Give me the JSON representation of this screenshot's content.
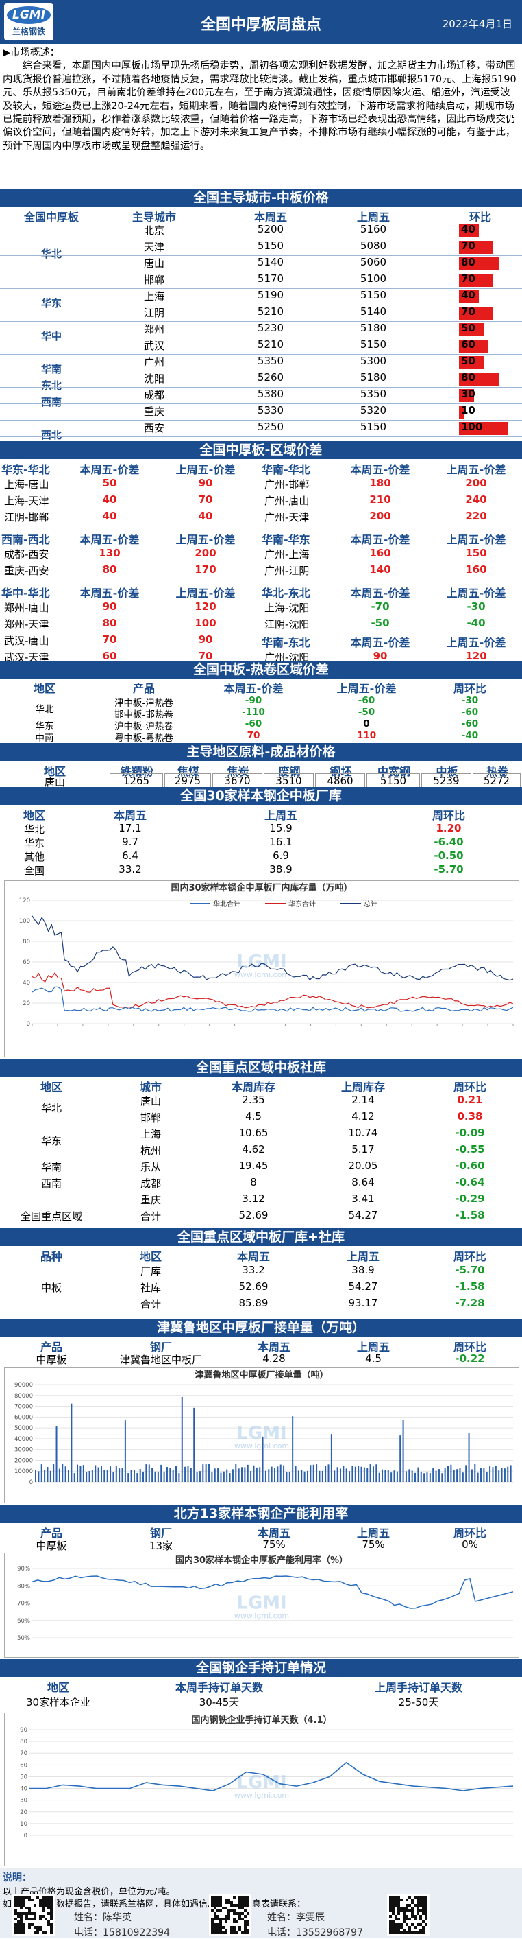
{
  "header": {
    "logo_top": "LGMI",
    "logo_bottom": "兰格钢铁",
    "title": "全国中厚板周盘点",
    "date": "2022年4月1日"
  },
  "summary": {
    "label": "市场概述：",
    "text": "综合来看，本周国内中厚板市场呈现先扬后稳走势，周初各项宏观利好数据发酵，加之期货主力市场迁移，带动国内现货报价普遍拉涨，不过随着各地疫情反复，需求释放比较清淡。截止发稿，重点城市邯郸报5170元、上海报5190元、乐从报5350元，目前南北价差维持在200元左右，至于南方资源流通性，因疫情原因除火运、船运外，汽运受波及较大，短途运费已上涨20-24元左右，短期来看，随着国内疫情得到有效控制，下游市场需求将陆续启动，期现市场已提前释放着强预期，秒作着涨系数比较浓重，但随着价格一路走高，下游市场已经表现出恐高情绪，因此市场成交仍偏议价空间，但随着国内疫情好转，加之上下游对未来复工复产节奏，不排除市场有继续小幅探涨的可能，有鉴于此，预计下周国内中厚板市场或呈现盘整趋强运行。"
  },
  "city_price": {
    "title": "全国主导城市-中板价格",
    "headers": [
      "全国中厚板",
      "主导城市",
      "本周五",
      "上周五",
      "环比"
    ],
    "rows": [
      {
        "region": "",
        "city": "北京",
        "cur": "5200",
        "prev": "5160",
        "chg": 40
      },
      {
        "region": "华北",
        "city": "天津",
        "cur": "5150",
        "prev": "5080",
        "chg": 70
      },
      {
        "region": "",
        "city": "唐山",
        "cur": "5140",
        "prev": "5060",
        "chg": 80
      },
      {
        "region": "",
        "city": "邯郸",
        "cur": "5170",
        "prev": "5100",
        "chg": 70
      },
      {
        "region": "华东",
        "city": "上海",
        "cur": "5190",
        "prev": "5150",
        "chg": 40
      },
      {
        "region": "",
        "city": "江阴",
        "cur": "5210",
        "prev": "5140",
        "chg": 70
      },
      {
        "region": "华中",
        "city": "郑州",
        "cur": "5230",
        "prev": "5180",
        "chg": 50
      },
      {
        "region": "",
        "city": "武汉",
        "cur": "5210",
        "prev": "5150",
        "chg": 60
      },
      {
        "region": "华南",
        "city": "广州",
        "cur": "5350",
        "prev": "5300",
        "chg": 50
      },
      {
        "region": "东北",
        "city": "沈阳",
        "cur": "5260",
        "prev": "5180",
        "chg": 80
      },
      {
        "region": "西南",
        "city": "成都",
        "cur": "5380",
        "prev": "5350",
        "chg": 30
      },
      {
        "region": "",
        "city": "重庆",
        "cur": "5330",
        "prev": "5320",
        "chg": 10
      },
      {
        "region": "西北",
        "city": "西安",
        "cur": "5250",
        "prev": "5150",
        "chg": 100
      }
    ]
  },
  "spread": {
    "title": "全国中厚板-区域价差",
    "blocks": [
      {
        "left_title": "华东-华北",
        "right_title": "华南-华北",
        "h_cur": "本周五-价差",
        "h_prev": "上周五-价差",
        "left": [
          [
            "上海-唐山",
            "50",
            "90"
          ],
          [
            "上海-天津",
            "40",
            "70"
          ],
          [
            "江阴-邯郸",
            "40",
            "40"
          ]
        ],
        "right": [
          [
            "广州-邯郸",
            "180",
            "200"
          ],
          [
            "广州-唐山",
            "210",
            "240"
          ],
          [
            "广州-天津",
            "200",
            "220"
          ]
        ]
      },
      {
        "left_title": "西南-西北",
        "right_title": "华南-华东",
        "h_cur": "本周五-价差",
        "h_prev": "上周五-价差",
        "left": [
          [
            "成都-西安",
            "130",
            "200"
          ],
          [
            "重庆-西安",
            "80",
            "170"
          ]
        ],
        "right": [
          [
            "广州-上海",
            "160",
            "150"
          ],
          [
            "广州-江阴",
            "140",
            "160"
          ]
        ]
      },
      {
        "left_title": "华中-华北",
        "right_title": "华北-东北",
        "h_cur": "本周五-价差",
        "h_prev": "上周五-价差",
        "left": [
          [
            "郑州-唐山",
            "90",
            "120"
          ],
          [
            "郑州-天津",
            "80",
            "100"
          ],
          [
            "武汉-唐山",
            "70",
            "90"
          ],
          [
            "武汉-天津",
            "60",
            "70"
          ]
        ],
        "right": [
          [
            "上海-沈阳",
            "-70",
            "-30"
          ],
          [
            "江阴-沈阳",
            "-50",
            "-40"
          ]
        ],
        "extra_right_title": "华南-东北",
        "extra_right": [
          "广州-沈阳",
          "90",
          "120"
        ]
      }
    ]
  },
  "hot_roll": {
    "title": "全国中板-热卷区域价差",
    "headers": [
      "地区",
      "产品",
      "本周五-价差",
      "上周五-价差",
      "周环比"
    ],
    "rows": [
      {
        "region": "",
        "product": "津中板-津热卷",
        "cur": "-90",
        "prev": "-60",
        "chg": "-30"
      },
      {
        "region": "华北",
        "product": "邯中板-邯热卷",
        "cur": "-110",
        "prev": "-50",
        "chg": "-60"
      },
      {
        "region": "华东",
        "product": "沪中板-沪热卷",
        "cur": "-60",
        "prev": "0",
        "chg": "-60"
      },
      {
        "region": "中南",
        "product": "粤中板-粤热卷",
        "cur": "70",
        "prev": "110",
        "chg": "-40"
      }
    ]
  },
  "raw": {
    "title": "主导地区原料-成品材价格",
    "headers": [
      "地区",
      "铁精粉",
      "焦煤",
      "焦炭",
      "废钢",
      "钢坯",
      "中宽钢",
      "中板",
      "热卷"
    ],
    "values": [
      "唐山",
      "1265",
      "2975",
      "3670",
      "3510",
      "4860",
      "5150",
      "5239",
      "5272"
    ]
  },
  "mill_stock": {
    "title": "全国30家样本钢企中板厂库",
    "headers": [
      "地区",
      "本周五",
      "上周五",
      "周环比"
    ],
    "rows": [
      [
        "华北",
        "17.1",
        "15.9",
        "1.20"
      ],
      [
        "华东",
        "9.7",
        "16.1",
        "-6.40"
      ],
      [
        "其他",
        "6.4",
        "6.9",
        "-0.50"
      ],
      [
        "全国",
        "33.2",
        "38.9",
        "-5.70"
      ]
    ]
  },
  "chart1": {
    "title": "国内30家样本钢企中厚板厂内库存量（万吨）",
    "legend": [
      "华北合计",
      "华东合计",
      "总计"
    ],
    "yticks": [
      "120",
      "100",
      "80",
      "60",
      "40",
      "20",
      "0"
    ],
    "watermark": "www.lgmi.com"
  },
  "social_stock": {
    "title": "全国重点区域中板社库",
    "headers": [
      "地区",
      "城市",
      "本周库存",
      "上周库存",
      "周环比"
    ],
    "rows": [
      {
        "region": "华北",
        "city": "唐山",
        "cur": "2.35",
        "prev": "2.14",
        "chg": "0.21"
      },
      {
        "region": "",
        "city": "邯郸",
        "cur": "4.5",
        "prev": "4.12",
        "chg": "0.38"
      },
      {
        "region": "华东",
        "city": "上海",
        "cur": "10.65",
        "prev": "10.74",
        "chg": "-0.09"
      },
      {
        "region": "",
        "city": "杭州",
        "cur": "4.62",
        "prev": "5.17",
        "chg": "-0.55"
      },
      {
        "region": "华南",
        "city": "乐从",
        "cur": "19.45",
        "prev": "20.05",
        "chg": "-0.60"
      },
      {
        "region": "西南",
        "city": "成都",
        "cur": "8",
        "prev": "8.64",
        "chg": "-0.64"
      },
      {
        "region": "",
        "city": "重庆",
        "cur": "3.12",
        "prev": "3.41",
        "chg": "-0.29"
      },
      {
        "region": "全国重点区域",
        "city": "合计",
        "cur": "52.69",
        "prev": "54.27",
        "chg": "-1.58"
      }
    ]
  },
  "total_stock": {
    "title": "全国重点区域中板厂库+社库",
    "headers": [
      "品种",
      "地区",
      "本周五",
      "上周五",
      "周环比"
    ],
    "product": "中板",
    "rows": [
      [
        "厂库",
        "33.2",
        "38.9",
        "-5.70"
      ],
      [
        "社库",
        "52.69",
        "54.27",
        "-1.58"
      ],
      [
        "合计",
        "85.89",
        "93.17",
        "-7.28"
      ]
    ]
  },
  "orders_vol": {
    "title": "津冀鲁地区中厚板厂接单量（万吨）",
    "headers": [
      "产品",
      "钢厂",
      "本周五",
      "上周五",
      "周环比"
    ],
    "row": [
      "中厚板",
      "津冀鲁地区中板厂",
      "4.28",
      "4.5",
      "-0.22"
    ]
  },
  "chart2": {
    "title": "津冀鲁地区中厚板厂接单量（吨）",
    "yticks": [
      "90000",
      "80000",
      "70000",
      "60000",
      "50000",
      "40000",
      "30000",
      "20000",
      "10000",
      "0"
    ],
    "watermark": "www.lgmi.com"
  },
  "capacity": {
    "title": "北方13家样本钢企产能利用率",
    "headers": [
      "产品",
      "钢厂",
      "本周五",
      "上周五",
      "周环比"
    ],
    "row": [
      "中厚板",
      "13家",
      "75%",
      "75%",
      "0%"
    ]
  },
  "chart3": {
    "title": "国内30家样本钢企中厚板产能利用率（%）",
    "yticks": [
      "90%",
      "80%",
      "70%",
      "60%",
      "50%"
    ],
    "watermark": "www.lgmi.com"
  },
  "orders_days": {
    "title": "全国钢企手持订单情况",
    "headers": [
      "地区",
      "本周手持订单天数",
      "上周手持订单天数"
    ],
    "row": [
      "30家样本企业",
      "30-45天",
      "25-50天"
    ]
  },
  "chart4": {
    "title": "国内钢铁企业手持订单天数（4.1）",
    "yticks": [
      "90",
      "80",
      "70",
      "60",
      "50",
      "40",
      "30",
      "20",
      "10",
      "0"
    ],
    "watermark": "www.lgmi.com"
  },
  "footer": {
    "note_title": "说明：",
    "note1": "以上产品价格为现金含税价，单位为元/吨。",
    "note2": "如需更多全面数据报告，请联系兰格网，具体如遇信息任选本信息表请联系：",
    "c1_name_label": "姓名：",
    "c1_name": "陈华英",
    "c1_tel_label": "电话：",
    "c1_tel": "15810922394",
    "c2_name_label": "姓名：",
    "c2_name": "李雯辰",
    "c2_tel_label": "电话：",
    "c2_tel": "13552968797"
  },
  "colors": {
    "navy": "#1a4c8e",
    "up": "#e51c1c",
    "down": "#169a2a"
  }
}
